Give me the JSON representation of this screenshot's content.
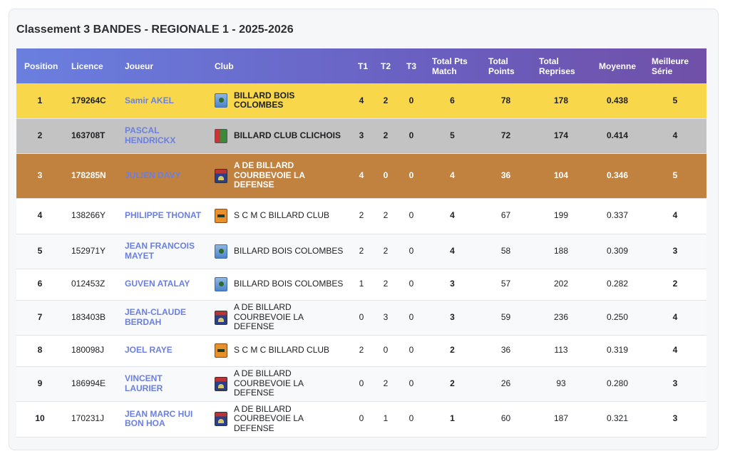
{
  "title": "Classement 3 BANDES - REGIONALE 1 - 2025-2026",
  "columns": [
    "Position",
    "Licence",
    "Joueur",
    "Club",
    "T1",
    "T2",
    "T3",
    "Total Pts Match",
    "Total Points",
    "Total Reprises",
    "Moyenne",
    "Meilleure Série"
  ],
  "colors": {
    "gold": "#f8d84a",
    "silver": "#c3c3c3",
    "bronze": "#c18240",
    "player_link": "#6b7fe0",
    "header_start": "#6a7fdf",
    "header_end": "#7050a8"
  },
  "rows": [
    {
      "position": "1",
      "licence": "179264C",
      "player": "Samir AKEL",
      "club": "BILLARD BOIS COLOMBES",
      "logo": "bbc",
      "t1": "4",
      "t2": "2",
      "t3": "0",
      "pts_match": "6",
      "points": "78",
      "reprises": "178",
      "moyenne": "0.438",
      "serie": "5"
    },
    {
      "position": "2",
      "licence": "163708T",
      "player": "PASCAL HENDRICKX",
      "club": "BILLARD CLUB CLICHOIS",
      "logo": "bcc",
      "t1": "3",
      "t2": "2",
      "t3": "0",
      "pts_match": "5",
      "points": "72",
      "reprises": "174",
      "moyenne": "0.414",
      "serie": "4"
    },
    {
      "position": "3",
      "licence": "178285N",
      "player": "JULIEN DAVY",
      "club": "A DE BILLARD COURBEVOIE LA DEFENSE",
      "logo": "adb",
      "t1": "4",
      "t2": "0",
      "t3": "0",
      "pts_match": "4",
      "points": "36",
      "reprises": "104",
      "moyenne": "0.346",
      "serie": "5"
    },
    {
      "position": "4",
      "licence": "138266Y",
      "player": "PHILIPPE THONAT",
      "club": "S C M C BILLARD CLUB",
      "logo": "scmc",
      "t1": "2",
      "t2": "2",
      "t3": "0",
      "pts_match": "4",
      "points": "67",
      "reprises": "199",
      "moyenne": "0.337",
      "serie": "4"
    },
    {
      "position": "5",
      "licence": "152971Y",
      "player": "JEAN FRANCOIS MAYET",
      "club": "BILLARD BOIS COLOMBES",
      "logo": "bbc",
      "t1": "2",
      "t2": "2",
      "t3": "0",
      "pts_match": "4",
      "points": "58",
      "reprises": "188",
      "moyenne": "0.309",
      "serie": "3"
    },
    {
      "position": "6",
      "licence": "012453Z",
      "player": "GUVEN ATALAY",
      "club": "BILLARD BOIS COLOMBES",
      "logo": "bbc",
      "t1": "1",
      "t2": "2",
      "t3": "0",
      "pts_match": "3",
      "points": "57",
      "reprises": "202",
      "moyenne": "0.282",
      "serie": "2"
    },
    {
      "position": "7",
      "licence": "183403B",
      "player": "JEAN-CLAUDE BERDAH",
      "club": "A DE BILLARD COURBEVOIE LA DEFENSE",
      "logo": "adb",
      "t1": "0",
      "t2": "3",
      "t3": "0",
      "pts_match": "3",
      "points": "59",
      "reprises": "236",
      "moyenne": "0.250",
      "serie": "4"
    },
    {
      "position": "8",
      "licence": "180098J",
      "player": "JOEL RAYE",
      "club": "S C M C BILLARD CLUB",
      "logo": "scmc",
      "t1": "2",
      "t2": "0",
      "t3": "0",
      "pts_match": "2",
      "points": "36",
      "reprises": "113",
      "moyenne": "0.319",
      "serie": "4"
    },
    {
      "position": "9",
      "licence": "186994E",
      "player": "VINCENT LAURIER",
      "club": "A DE BILLARD COURBEVOIE LA DEFENSE",
      "logo": "adb",
      "t1": "0",
      "t2": "2",
      "t3": "0",
      "pts_match": "2",
      "points": "26",
      "reprises": "93",
      "moyenne": "0.280",
      "serie": "3"
    },
    {
      "position": "10",
      "licence": "170231J",
      "player": "JEAN MARC HUI BON HOA",
      "club": "A DE BILLARD COURBEVOIE LA DEFENSE",
      "logo": "adb",
      "t1": "0",
      "t2": "1",
      "t3": "0",
      "pts_match": "1",
      "points": "60",
      "reprises": "187",
      "moyenne": "0.321",
      "serie": "3"
    }
  ]
}
